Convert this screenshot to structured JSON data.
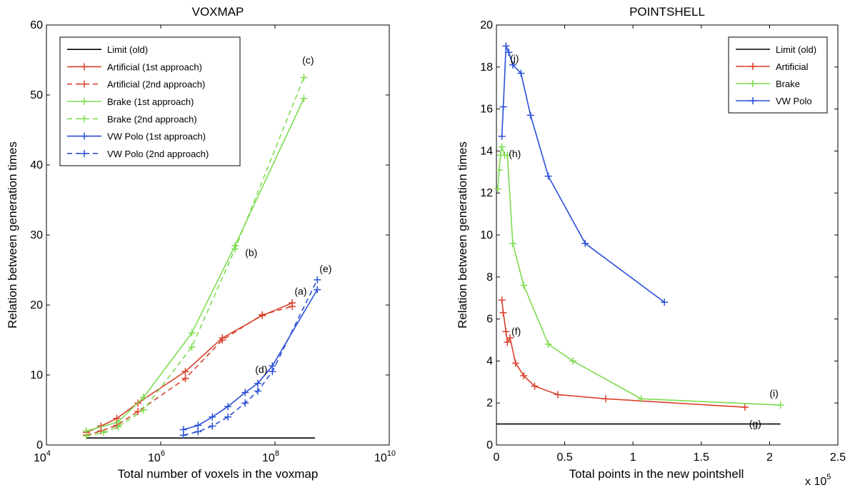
{
  "chart_data": [
    {
      "type": "line",
      "title": "VOXMAP",
      "xlabel": "Total number of voxels in the voxmap",
      "ylabel": "Relation between generation times",
      "xscale": "log",
      "xlim": [
        10000,
        10000000000
      ],
      "ylim": [
        0,
        60
      ],
      "xticks": [
        10000,
        1000000,
        100000000,
        10000000000
      ],
      "xtick_labels": [
        [
          "10",
          "4"
        ],
        [
          "10",
          "6"
        ],
        [
          "10",
          "8"
        ],
        [
          "10",
          "10"
        ]
      ],
      "yticks": [
        0,
        10,
        20,
        30,
        40,
        50,
        60
      ],
      "ytick_labels": [
        "0",
        "10",
        "20",
        "30",
        "40",
        "50",
        "60"
      ],
      "grid": false,
      "legend_position": "top-left",
      "series": [
        {
          "name": "Limit (old)",
          "color": "#000000",
          "dash": "solid",
          "marker": "none",
          "x": [
            50000,
            500000000
          ],
          "y": [
            1,
            1
          ]
        },
        {
          "name": "Artificial (1st approach)",
          "color": "#d9402b",
          "dash": "solid",
          "marker": "plus",
          "x": [
            50000,
            90000,
            170000,
            400000,
            2700000,
            12000000,
            60000000,
            200000000
          ],
          "y": [
            1.8,
            2.7,
            3.8,
            6.0,
            10.5,
            15.3,
            18.5,
            20.3
          ]
        },
        {
          "name": "Artificial (2nd approach)",
          "color": "#d9402b",
          "dash": "dashed",
          "marker": "plus",
          "x": [
            50000,
            90000,
            170000,
            400000,
            2700000,
            12000000,
            60000000,
            200000000
          ],
          "y": [
            1.4,
            2.0,
            2.8,
            4.8,
            9.5,
            15.0,
            18.6,
            19.8
          ]
        },
        {
          "name": "Brake (1st approach)",
          "color": "#7ddc4e",
          "dash": "solid",
          "marker": "plus",
          "x": [
            50000,
            180000,
            500000,
            3500000,
            20000000,
            320000000
          ],
          "y": [
            2.0,
            3.3,
            6.8,
            16.0,
            28.5,
            49.5
          ]
        },
        {
          "name": "Brake (2nd approach)",
          "color": "#7ddc4e",
          "dash": "dashed",
          "marker": "plus",
          "x": [
            50000,
            100000,
            180000,
            500000,
            3500000,
            20000000,
            320000000
          ],
          "y": [
            1.3,
            1.8,
            2.6,
            5.0,
            14.0,
            28.0,
            52.5
          ]
        },
        {
          "name": "VW Polo (1st approach)",
          "color": "#2a4fd6",
          "dash": "solid",
          "marker": "plus",
          "x": [
            2500000,
            4500000,
            8000000,
            15000000,
            30000000,
            50000000,
            90000000,
            550000000
          ],
          "y": [
            2.2,
            2.8,
            4.0,
            5.5,
            7.5,
            8.8,
            11.3,
            22.2
          ]
        },
        {
          "name": "VW Polo (2nd approach)",
          "color": "#2a4fd6",
          "dash": "dashed",
          "marker": "plus",
          "x": [
            2500000,
            4500000,
            8000000,
            15000000,
            30000000,
            50000000,
            90000000,
            550000000
          ],
          "y": [
            1.4,
            1.9,
            2.7,
            4.0,
            6.0,
            7.7,
            10.5,
            23.6
          ]
        }
      ],
      "annotations": [
        {
          "text": "(a)",
          "x": 220000000,
          "y": 21.5
        },
        {
          "text": "(b)",
          "x": 30000000,
          "y": 27
        },
        {
          "text": "(c)",
          "x": 300000000,
          "y": 54.5
        },
        {
          "text": "(d)",
          "x": 45000000,
          "y": 10.3
        },
        {
          "text": "(e)",
          "x": 600000000,
          "y": 24.7
        }
      ]
    },
    {
      "type": "line",
      "title": "POINTSHELL",
      "xlabel": "Total points in the new pointshell",
      "ylabel": "Relation between generation times",
      "x_multiplier_label": [
        "x 10",
        "5"
      ],
      "xlim": [
        0,
        2.5
      ],
      "ylim": [
        0,
        20
      ],
      "xticks": [
        0,
        0.5,
        1,
        1.5,
        2,
        2.5
      ],
      "xtick_labels": [
        "0",
        "0.5",
        "1",
        "1.5",
        "2",
        "2.5"
      ],
      "yticks": [
        0,
        2,
        4,
        6,
        8,
        10,
        12,
        14,
        16,
        18,
        20
      ],
      "ytick_labels": [
        "0",
        "2",
        "4",
        "6",
        "8",
        "10",
        "12",
        "14",
        "16",
        "18",
        "20"
      ],
      "grid": false,
      "legend_position": "top-right",
      "series": [
        {
          "name": "Limit (old)",
          "color": "#000000",
          "dash": "solid",
          "marker": "none",
          "x": [
            0,
            2.08
          ],
          "y": [
            1,
            1
          ]
        },
        {
          "name": "Artificial",
          "color": "#d9402b",
          "dash": "solid",
          "marker": "plus",
          "x": [
            0.04,
            0.05,
            0.07,
            0.08,
            0.1,
            0.14,
            0.2,
            0.28,
            0.45,
            0.8,
            1.82
          ],
          "y": [
            6.9,
            6.3,
            5.4,
            4.9,
            5.1,
            3.9,
            3.3,
            2.8,
            2.4,
            2.2,
            1.8
          ]
        },
        {
          "name": "Brake",
          "color": "#7ddc4e",
          "dash": "solid",
          "marker": "plus",
          "x": [
            0.01,
            0.02,
            0.03,
            0.04,
            0.06,
            0.08,
            0.12,
            0.2,
            0.38,
            0.56,
            1.06,
            2.08
          ],
          "y": [
            12.2,
            13.1,
            13.8,
            14.2,
            13.8,
            13.8,
            9.6,
            7.6,
            4.8,
            4.0,
            2.2,
            1.9
          ]
        },
        {
          "name": "VW Polo",
          "color": "#2a4fd6",
          "dash": "solid",
          "marker": "plus",
          "x": [
            0.04,
            0.05,
            0.07,
            0.09,
            0.12,
            0.18,
            0.25,
            0.38,
            0.65,
            1.23
          ],
          "y": [
            14.7,
            16.1,
            19.0,
            18.7,
            18.1,
            17.7,
            15.7,
            12.8,
            9.6,
            6.8
          ]
        }
      ],
      "annotations": [
        {
          "text": "(f)",
          "x": 0.11,
          "y": 5.25
        },
        {
          "text": "(g)",
          "x": 1.85,
          "y": 0.85
        },
        {
          "text": "(h)",
          "x": 0.09,
          "y": 13.7
        },
        {
          "text": "(i)",
          "x": 2.0,
          "y": 2.3
        },
        {
          "text": "(j)",
          "x": 0.1,
          "y": 18.25
        }
      ]
    }
  ]
}
